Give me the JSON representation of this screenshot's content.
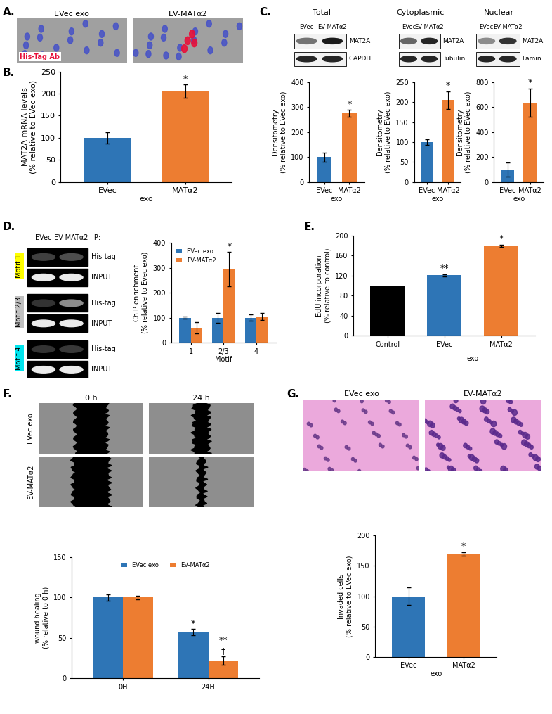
{
  "panels": {
    "A": {
      "letter": "A.",
      "images": [
        "EVec exo",
        "EV-MATα2"
      ],
      "stain": "His-Tag Ab"
    },
    "C": {
      "letter": "C.",
      "blots": [
        {
          "title": "Total",
          "lanes": [
            "EVec",
            "EV-MATα2"
          ],
          "bands": [
            "MAT2A",
            "GAPDH"
          ]
        },
        {
          "title": "Cytoplasmic",
          "lanes": [
            "EVec",
            "EV-MATα2"
          ],
          "bands": [
            "MAT2A",
            "Tubulin"
          ]
        },
        {
          "title": "Nuclear",
          "lanes": [
            "EVec",
            "EV-MATα2"
          ],
          "bands": [
            "MAT2A",
            "Lamin"
          ]
        }
      ]
    },
    "D": {
      "letter": "D.",
      "lanes": [
        "EVec",
        "EV-MATα2"
      ],
      "ip_label": "IP:",
      "rows": [
        {
          "motif": "Motif 1",
          "bands": [
            "His-tag",
            "INPUT"
          ]
        },
        {
          "motif": "Motif 2/3",
          "bands": [
            "His-tag",
            "INPUT"
          ]
        },
        {
          "motif": "Motif 4",
          "bands": [
            "His-tag",
            "INPUT"
          ]
        }
      ]
    },
    "F": {
      "letter": "F.",
      "columns": [
        "0 h",
        "24 h"
      ],
      "rows": [
        "EVec exo",
        "EV-MATα2"
      ]
    },
    "G": {
      "letter": "G.",
      "images": [
        "EVec exo",
        "EV-MATα2"
      ]
    }
  },
  "chart_data": [
    {
      "panel": "B.",
      "type": "bar",
      "categories": [
        "EVec",
        "MATα2"
      ],
      "xlabel": "exo",
      "ylabel": "MAT2A mRNA levels\n(% relative to EVec exo)",
      "values": [
        100,
        205
      ],
      "errors": [
        13,
        15
      ],
      "colors": [
        "#2e75b6",
        "#ed7d31"
      ],
      "significance": [
        null,
        "*"
      ],
      "ylim": [
        0,
        250
      ],
      "yticks": [
        0,
        50,
        100,
        150,
        200,
        250
      ]
    },
    {
      "type": "bar",
      "categories": [
        "EVec",
        "MATα2"
      ],
      "xlabel": "exo",
      "ylabel": "Densitometry\n(% relative to EVec exo)",
      "values": [
        100,
        275
      ],
      "errors": [
        18,
        14
      ],
      "colors": [
        "#2e75b6",
        "#ed7d31"
      ],
      "significance": [
        null,
        "*"
      ],
      "ylim": [
        0,
        400
      ],
      "yticks": [
        0,
        100,
        200,
        300,
        400
      ]
    },
    {
      "type": "bar",
      "categories": [
        "EVec",
        "MATα2"
      ],
      "xlabel": "exo",
      "ylabel": "Densitometry\n(% relative to EVec exo)",
      "values": [
        100,
        205
      ],
      "errors": [
        7,
        22
      ],
      "colors": [
        "#2e75b6",
        "#ed7d31"
      ],
      "significance": [
        null,
        "*"
      ],
      "ylim": [
        0,
        250
      ],
      "yticks": [
        0,
        50,
        100,
        150,
        200,
        250
      ]
    },
    {
      "type": "bar",
      "categories": [
        "EVec",
        "MATα2"
      ],
      "xlabel": "exo",
      "ylabel": "Densitometry\n(% relative to EVec exo)",
      "values": [
        100,
        635
      ],
      "errors": [
        55,
        115
      ],
      "colors": [
        "#2e75b6",
        "#ed7d31"
      ],
      "significance": [
        null,
        "*"
      ],
      "ylim": [
        0,
        800
      ],
      "yticks": [
        0,
        200,
        400,
        600,
        800
      ]
    },
    {
      "type": "grouped_bar",
      "categories": [
        "1",
        "2/3",
        "4"
      ],
      "xlabel": "Motif",
      "ylabel": "ChIP enrichment\n(% relative to Evec exo)",
      "series": [
        {
          "name": "EVec exo",
          "color": "#2e75b6",
          "values": [
            100,
            100,
            100
          ],
          "errors": [
            5,
            20,
            12
          ],
          "significance": [
            null,
            null,
            null
          ]
        },
        {
          "name": "EV-MATα2",
          "color": "#ed7d31",
          "values": [
            60,
            295,
            105
          ],
          "errors": [
            22,
            68,
            15
          ],
          "significance": [
            null,
            "*",
            null
          ]
        }
      ],
      "legend": "upper left",
      "ylim": [
        0,
        400
      ],
      "yticks": [
        0,
        100,
        200,
        300,
        400
      ]
    },
    {
      "panel": "E.",
      "type": "bar",
      "categories": [
        "Control",
        "EVec",
        "MATα2"
      ],
      "group_label": {
        "text": "exo",
        "categories": [
          "EVec",
          "MATα2"
        ]
      },
      "ylabel": "EdU incorporation\n(% relative to control)",
      "values": [
        100,
        121,
        180
      ],
      "errors": [
        null,
        2,
        2
      ],
      "colors": [
        "#000000",
        "#2e75b6",
        "#ed7d31"
      ],
      "significance": [
        null,
        "**",
        "*"
      ],
      "ylim": [
        0,
        200
      ],
      "yticks": [
        0,
        40,
        80,
        120,
        160,
        200
      ]
    },
    {
      "type": "grouped_bar",
      "categories": [
        "0H",
        "24H"
      ],
      "ylabel": "wound healing\n(% relative to 0 h)",
      "series": [
        {
          "name": "EVec exo",
          "color": "#2e75b6",
          "values": [
            100,
            57
          ],
          "errors": [
            4,
            4
          ],
          "significance": [
            null,
            "*"
          ]
        },
        {
          "name": "EV-MATα2",
          "color": "#ed7d31",
          "values": [
            100,
            22
          ],
          "errors": [
            2,
            5
          ],
          "significance": [
            null,
            "**\n†"
          ]
        }
      ],
      "legend": "upper center",
      "ylim": [
        0,
        150
      ],
      "yticks": [
        0,
        50,
        100,
        150
      ]
    },
    {
      "type": "bar",
      "categories": [
        "EVec",
        "MATα2"
      ],
      "xlabel": "exo",
      "ylabel": "Invaded cells\n(% relative to EVec exo)",
      "values": [
        100,
        170
      ],
      "errors": [
        14,
        3
      ],
      "colors": [
        "#2e75b6",
        "#ed7d31"
      ],
      "significance": [
        null,
        "*"
      ],
      "ylim": [
        0,
        200
      ],
      "yticks": [
        0,
        50,
        100,
        150,
        200
      ]
    }
  ]
}
